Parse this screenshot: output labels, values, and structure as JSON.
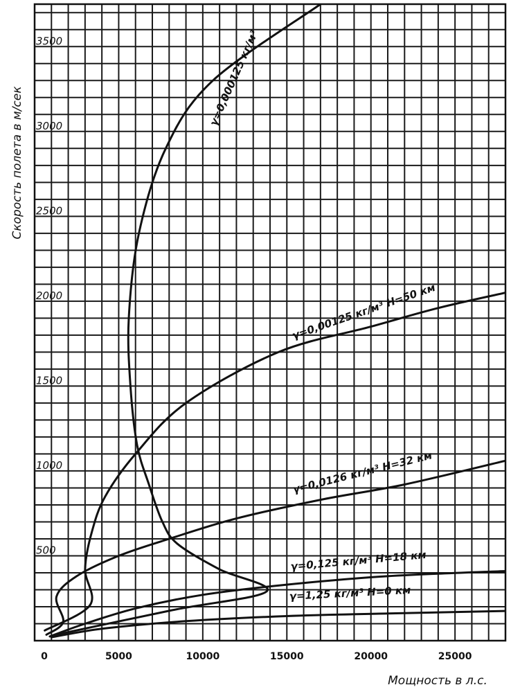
{
  "chart_data": {
    "type": "line",
    "title": "",
    "xlabel": "Мощность в л.с.",
    "ylabel": "Скорость полета в м/сек",
    "xlim": [
      0,
      28000
    ],
    "ylim": [
      0,
      3750
    ],
    "x_ticks": [
      "0",
      "5000",
      "10000",
      "15000",
      "20000",
      "25000"
    ],
    "y_ticks": [
      "500",
      "1000",
      "1500",
      "2000",
      "2500",
      "3000",
      "3500"
    ],
    "x_tick_values": [
      0,
      5000,
      10000,
      15000,
      20000,
      25000
    ],
    "y_tick_values": [
      500,
      1000,
      1500,
      2000,
      2500,
      3000,
      3500
    ],
    "grid": true,
    "legend": "none",
    "series": [
      {
        "name": "γ=0,000125 кг/м³",
        "points": [
          [
            1050,
            30
          ],
          [
            8200,
            180
          ],
          [
            13800,
            290
          ],
          [
            11000,
            420
          ],
          [
            8500,
            570
          ],
          [
            7600,
            700
          ],
          [
            6800,
            920
          ],
          [
            6100,
            1150
          ],
          [
            5700,
            1500
          ],
          [
            5600,
            1900
          ],
          [
            6200,
            2400
          ],
          [
            7800,
            2900
          ],
          [
            10600,
            3300
          ],
          [
            17000,
            3750
          ]
        ]
      },
      {
        "name": "γ=0,00125 кг/м³ H=50 км",
        "points": [
          [
            600,
            60
          ],
          [
            3300,
            210
          ],
          [
            3000,
            420
          ],
          [
            3400,
            640
          ],
          [
            4200,
            850
          ],
          [
            6000,
            1100
          ],
          [
            9000,
            1400
          ],
          [
            14500,
            1700
          ],
          [
            20000,
            1850
          ],
          [
            24000,
            1960
          ],
          [
            28000,
            2050
          ]
        ]
      },
      {
        "name": "γ=0,0126 кг/м³ H=32 км",
        "points": [
          [
            700,
            35
          ],
          [
            1700,
            110
          ],
          [
            1300,
            260
          ],
          [
            2500,
            380
          ],
          [
            5000,
            500
          ],
          [
            8000,
            600
          ],
          [
            12000,
            720
          ],
          [
            17000,
            830
          ],
          [
            22000,
            920
          ],
          [
            28000,
            1060
          ]
        ]
      },
      {
        "name": "γ=0,125 кг/м³ H=18 км",
        "points": [
          [
            900,
            25
          ],
          [
            3000,
            100
          ],
          [
            6000,
            190
          ],
          [
            10000,
            270
          ],
          [
            15000,
            330
          ],
          [
            21000,
            380
          ],
          [
            28000,
            410
          ]
        ]
      },
      {
        "name": "γ=1,25 кг/м³ H=0 км",
        "points": [
          [
            1000,
            20
          ],
          [
            4000,
            70
          ],
          [
            9000,
            115
          ],
          [
            15000,
            145
          ],
          [
            21000,
            160
          ],
          [
            28000,
            175
          ]
        ]
      }
    ],
    "annotations": [
      "γ=0,000125 кг/м³",
      "γ=0,00125 кг/м³ H=50 км",
      "γ=0,0126 кг/м³ H=32 км",
      "γ=0,125 кг/м³ H=18 км",
      "γ=1,25 кг/м³ H=0 км"
    ]
  }
}
